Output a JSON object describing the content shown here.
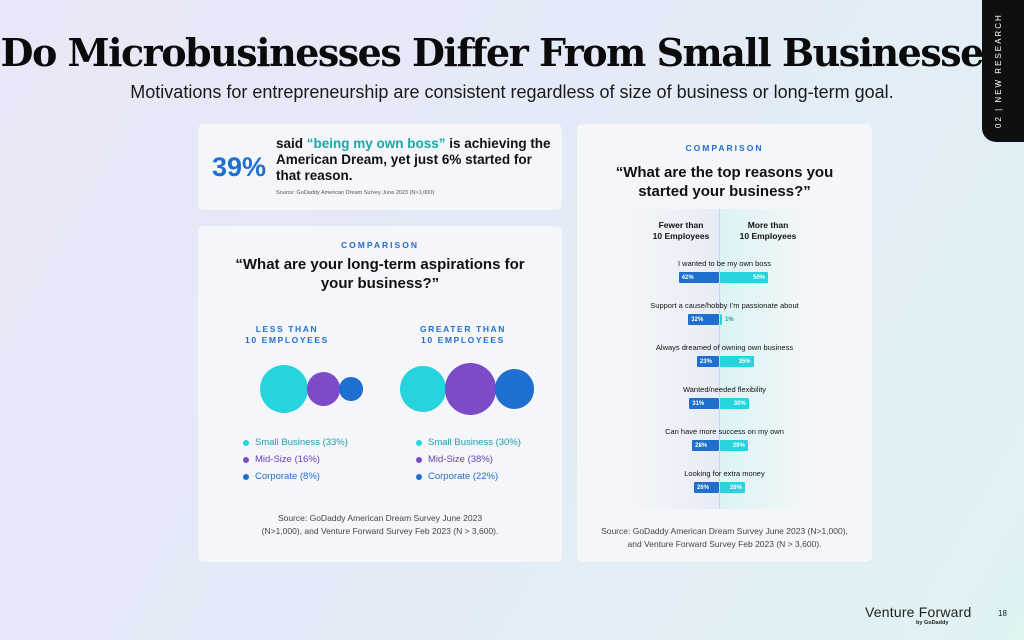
{
  "title": "Do Microbusinesses Differ From Small Businesses?",
  "subtitle": "Motivations for entrepreneurship are consistent regardless of size of business or long-term goal.",
  "side_tab": "02 | NEW RESEARCH",
  "stat_card": {
    "percent": "39%",
    "text_before": "said ",
    "highlight": "“being my own boss”",
    "text_after": " is achieving the American Dream, yet just 6% started for that reason.",
    "source": "Source: GoDaddy American Dream Survey June 2023 (N>1,000)"
  },
  "colors": {
    "small": "#25d4dc",
    "mid": "#7d4bc8",
    "corporate": "#1f6fd0",
    "accent": "#1f6fd0",
    "highlight": "#16a9a6"
  },
  "aspirations": {
    "eyebrow": "COMPARISON",
    "question": "“What are your long-term aspirations for your business?”",
    "source_line1": "Source: GoDaddy American Dream Survey June 2023",
    "source_line2": "(N>1,000), and Venture Forward Survey Feb 2023 (N > 3,600).",
    "groups": [
      {
        "head_line1": "LESS THAN",
        "head_line2": "10 EMPLOYEES",
        "legend": [
          "Small Business (33%)",
          "Mid-Size (16%)",
          "Corporate (8%)"
        ]
      },
      {
        "head_line1": "GREATER THAN",
        "head_line2": "10 EMPLOYEES",
        "legend": [
          "Small Business (30%)",
          "Mid-Size (38%)",
          "Corporate (22%)"
        ]
      }
    ]
  },
  "reasons": {
    "eyebrow": "COMPARISON",
    "question": "“What are the top reasons you started your business?”",
    "left_head_line1": "Fewer than",
    "left_head_line2": "10 Employees",
    "right_head_line1": "More than",
    "right_head_line2": "10 Employees",
    "source_line1": "Source: GoDaddy American Dream Survey June 2023 (N>1,000),",
    "source_line2": "and Venture Forward Survey Feb 2023 (N > 3,600)."
  },
  "chart_data": [
    {
      "type": "bubble",
      "title": "“What are your long-term aspirations for your business?”",
      "categories": [
        "Small Business",
        "Mid-Size",
        "Corporate"
      ],
      "series": [
        {
          "name": "LESS THAN 10 EMPLOYEES",
          "values": [
            33,
            16,
            8
          ]
        },
        {
          "name": "GREATER THAN 10 EMPLOYEES",
          "values": [
            30,
            38,
            22
          ]
        }
      ],
      "unit": "%"
    },
    {
      "type": "bar",
      "orientation": "horizontal-diverging",
      "title": "“What are the top reasons you started your business?”",
      "categories": [
        "I wanted to be my own boss",
        "Support a cause/hobby I’m passionate about",
        "Always dreamed of owning own business",
        "Wanted/needed flexibility",
        "Can have more success on my own",
        "Looking for extra money"
      ],
      "series": [
        {
          "name": "Fewer than 10 Employees",
          "values": [
            42,
            32,
            23,
            31,
            28,
            26
          ],
          "labels": [
            "42%",
            "32%",
            "23%",
            "31%",
            "28%",
            "26%"
          ]
        },
        {
          "name": "More than 10 Employees",
          "values": [
            50,
            1,
            35,
            30,
            29,
            26
          ],
          "labels": [
            "50%",
            "1%",
            "35%",
            "30%",
            "29%",
            "26%"
          ]
        }
      ],
      "unit": "%"
    }
  ],
  "brand": {
    "name": "Venture Forward",
    "sub": "by GoDaddy"
  },
  "page_number": "18"
}
